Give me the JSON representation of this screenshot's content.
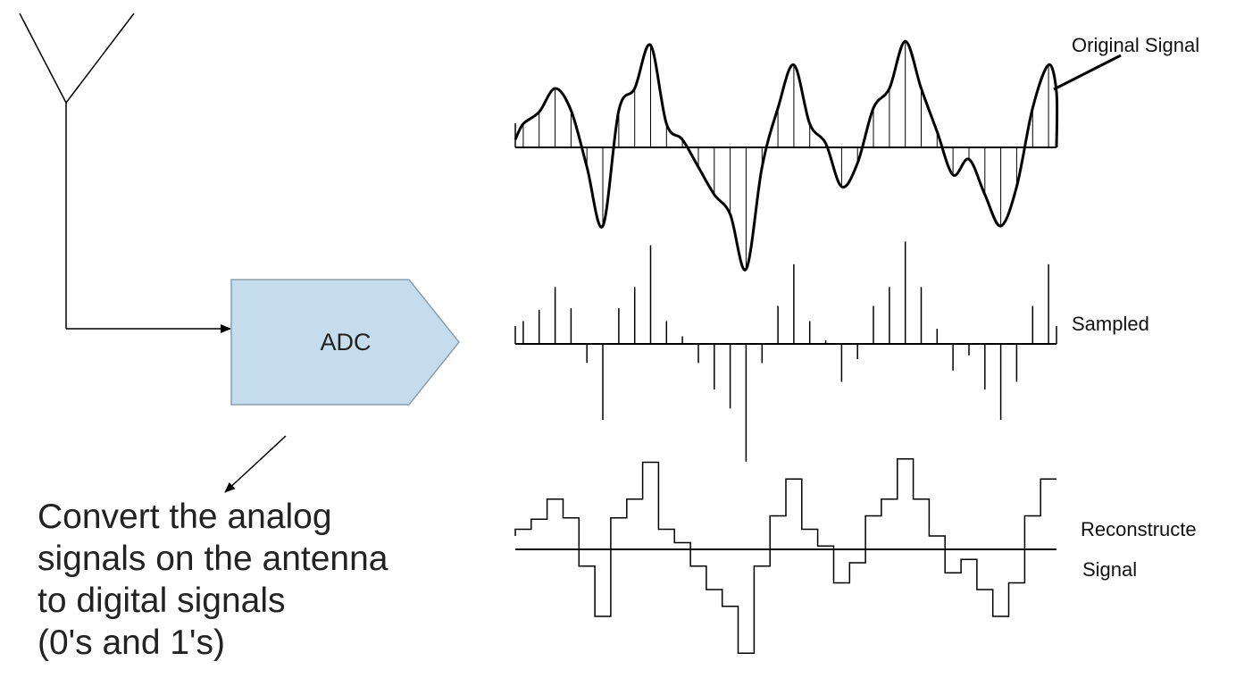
{
  "adc": {
    "label": "ADC",
    "fill_color": "#c5dcec",
    "stroke_color": "#8aa0ae"
  },
  "description_lines": [
    "Convert the analog",
    "signals on the antenna",
    "to digital signals",
    "(0's and 1's)"
  ],
  "waveforms": {
    "original_label": "Original Signal",
    "sampled_label": "Sampled",
    "reconstructed_label_line1": "Reconstructe",
    "reconstructed_label_line2": "Signal"
  },
  "icons": {
    "antenna": "antenna-icon",
    "arrows": "arrow-icon"
  },
  "samples": [
    0.3,
    0.45,
    0.75,
    0.47,
    -0.25,
    -1.0,
    0.47,
    0.75,
    1.3,
    0.3,
    0.1,
    -0.25,
    -0.6,
    -0.85,
    -1.55,
    -0.25,
    0.5,
    1.05,
    0.3,
    0.05,
    -0.5,
    -0.2,
    0.5,
    0.75,
    1.35,
    0.75,
    0.2,
    -0.35,
    -0.15,
    -0.6,
    -1.0,
    -0.5,
    0.5,
    1.05
  ]
}
